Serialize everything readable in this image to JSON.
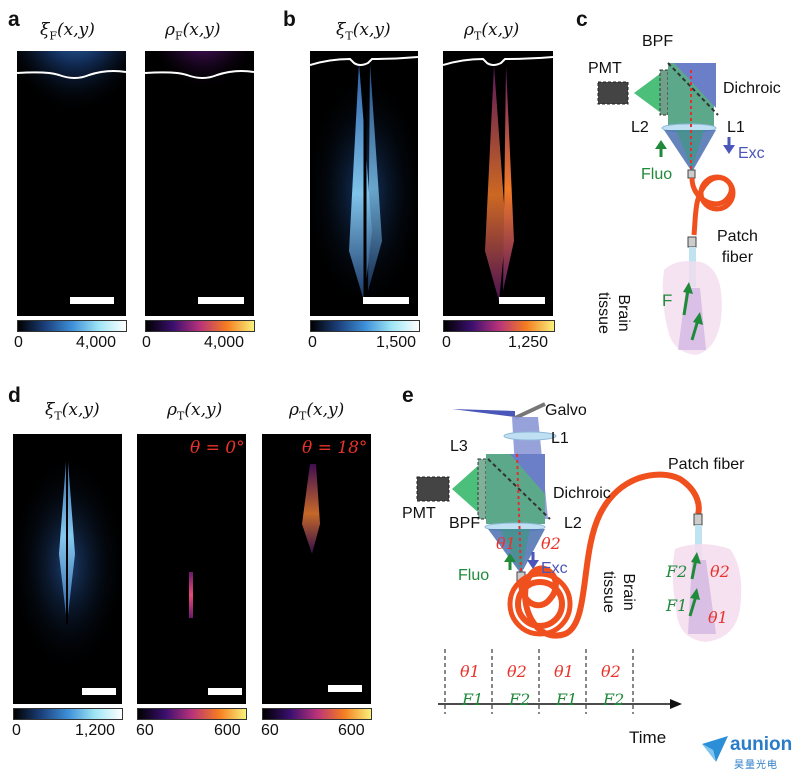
{
  "panels": {
    "a": {
      "label": "a",
      "left_title": "ξF(x,y)",
      "right_title": "ρF(x,y)",
      "left_cbar_min": "0",
      "left_cbar_max": "4,000",
      "right_cbar_min": "0",
      "right_cbar_max": "4,000"
    },
    "b": {
      "label": "b",
      "left_title": "ξT(x,y)",
      "right_title": "ρT(x,y)",
      "left_cbar_min": "0",
      "left_cbar_max": "1,500",
      "right_cbar_min": "0",
      "right_cbar_max": "1,250"
    },
    "c": {
      "label": "c",
      "pmt": "PMT",
      "bpf": "BPF",
      "dichroic": "Dichroic",
      "l1": "L1",
      "l2": "L2",
      "exc": "Exc",
      "fluo": "Fluo",
      "patch_fiber": "Patch\nfiber",
      "brain_tissue": "Brain\ntissue",
      "f": "F"
    },
    "d": {
      "label": "d",
      "titles": [
        "ξT(x,y)",
        "ρT(x,y)",
        "ρT(x,y)"
      ],
      "angles": [
        "θ = 0°",
        "θ = 18°"
      ],
      "cbars": [
        {
          "min": "0",
          "max": "1,200"
        },
        {
          "min": "60",
          "max": "600"
        },
        {
          "min": "60",
          "max": "600"
        }
      ]
    },
    "e": {
      "label": "e",
      "galvo": "Galvo",
      "l1": "L1",
      "l3": "L3",
      "dichroic": "Dichroic",
      "pmt": "PMT",
      "bpf": "BPF",
      "l2": "L2",
      "fluo": "Fluo",
      "exc": "Exc",
      "patch_fiber": "Patch fiber",
      "brain_tissue": "Brain\ntissue",
      "theta1": "θ1",
      "theta2": "θ2",
      "f1": "F1",
      "f2": "F2",
      "time": "Time",
      "timeline": [
        {
          "theta": "θ1",
          "f": "F1"
        },
        {
          "theta": "θ2",
          "f": "F2"
        },
        {
          "theta": "θ1",
          "f": "F1"
        },
        {
          "theta": "θ2",
          "f": "F2"
        }
      ]
    }
  },
  "logo": {
    "name": "aunion",
    "subtitle": "昊量光电"
  },
  "colors": {
    "exc": "#4a56b8",
    "fluo": "#1f8a3a",
    "fiber": "#f0501e",
    "theta": "#e8322a"
  }
}
